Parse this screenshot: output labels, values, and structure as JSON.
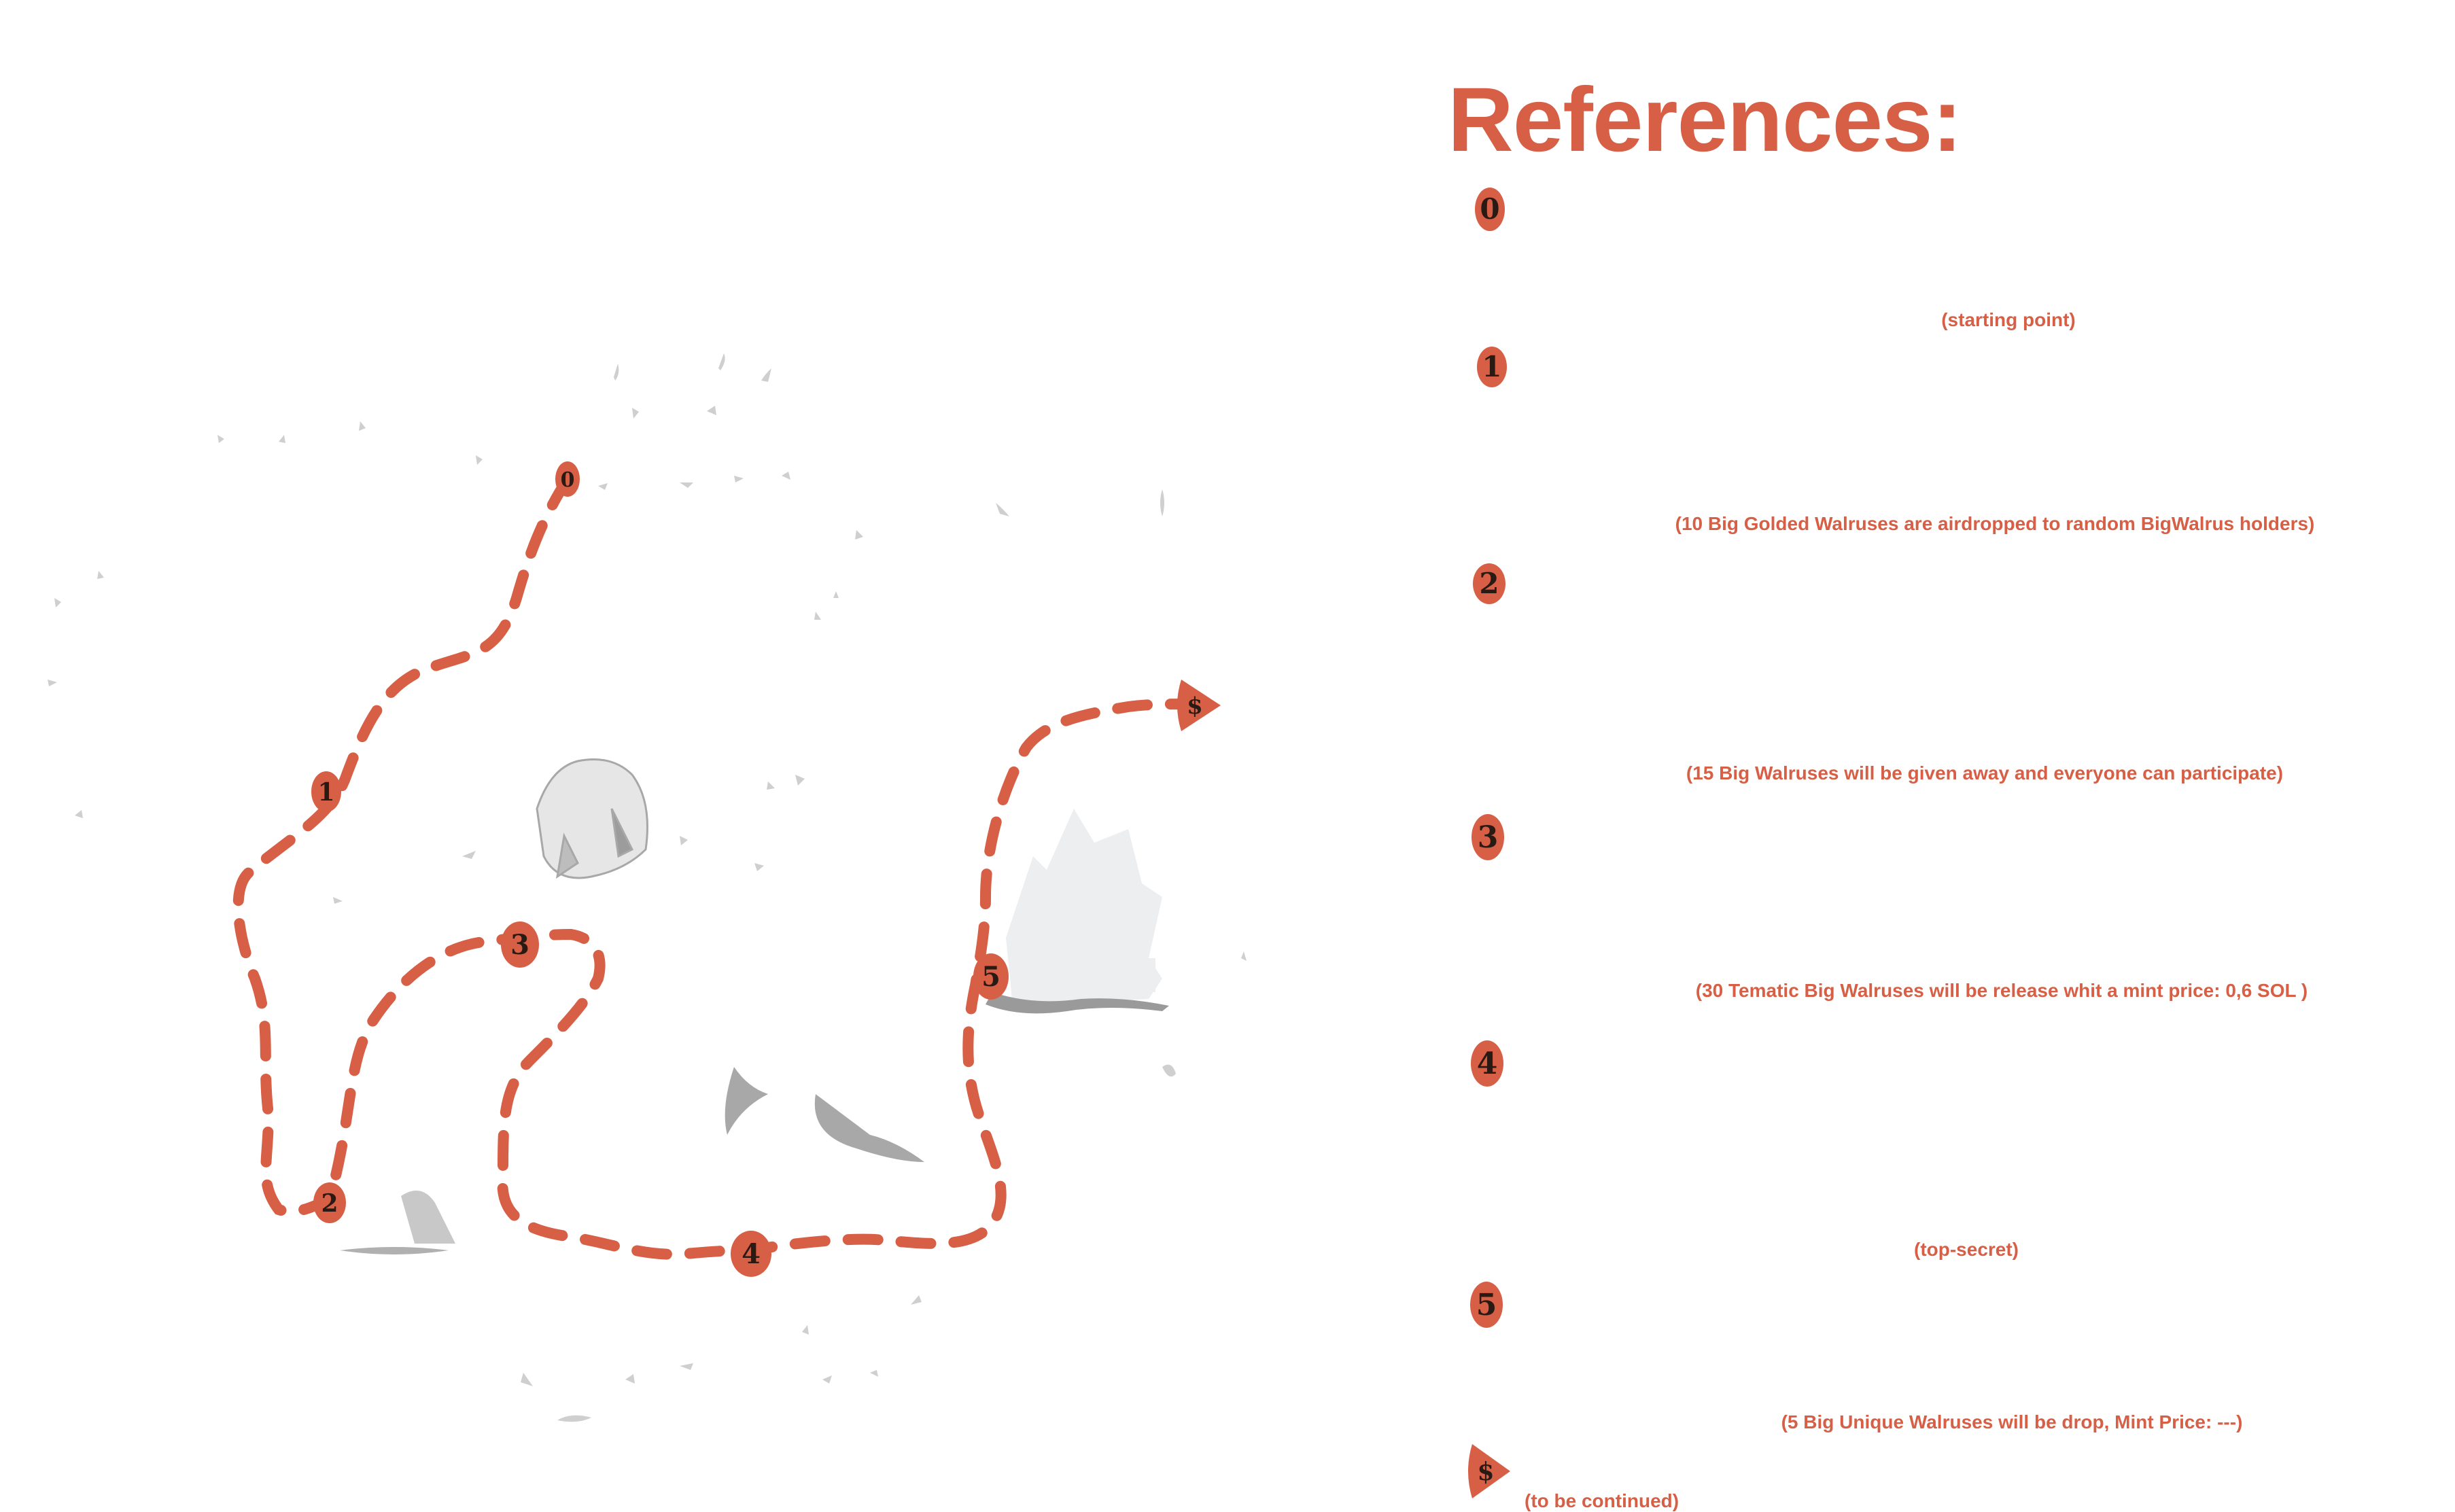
{
  "title": "References:",
  "accent_color": "#d65f45",
  "marker_text_color": "#2a1a14",
  "scenery_color": "#b8b8b8",
  "map_markers": [
    {
      "id": "0",
      "label": "0"
    },
    {
      "id": "1",
      "label": "1"
    },
    {
      "id": "2",
      "label": "2"
    },
    {
      "id": "3",
      "label": "3"
    },
    {
      "id": "4",
      "label": "4"
    },
    {
      "id": "5",
      "label": "5"
    },
    {
      "id": "end",
      "label": "$"
    }
  ],
  "references": [
    {
      "marker": "0",
      "description": "(starting point)"
    },
    {
      "marker": "1",
      "description": "(10 Big Golded Walruses are airdropped to random BigWalrus holders)"
    },
    {
      "marker": "2",
      "description": "(15 Big Walruses will be given away and everyone can participate)"
    },
    {
      "marker": "3",
      "description": "(30 Tematic Big Walruses will be release whit a mint price: 0,6 SOL )"
    },
    {
      "marker": "4",
      "description": "(top-secret)"
    },
    {
      "marker": "5",
      "description": "(5 Big Unique Walruses will be drop, Mint Price: ---)"
    },
    {
      "marker": "$",
      "description": "(to be continued)"
    }
  ]
}
